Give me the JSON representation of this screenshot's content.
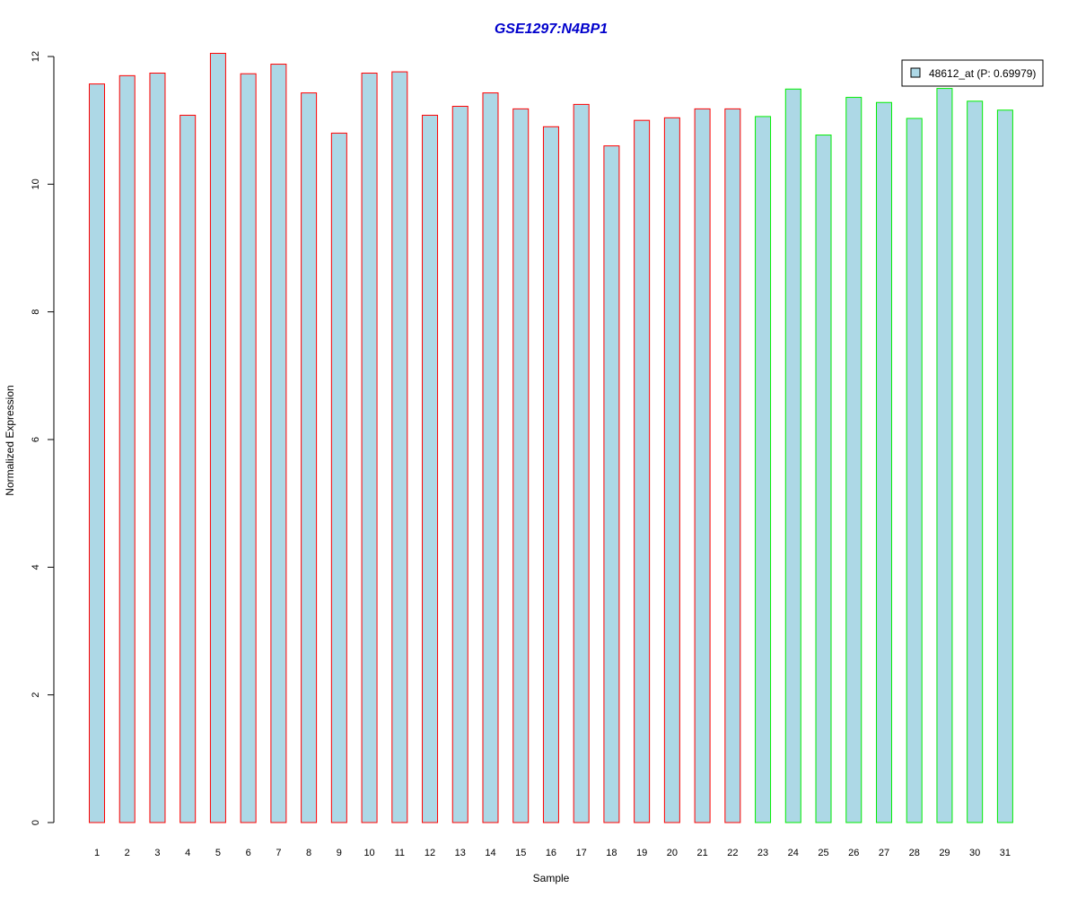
{
  "chart_data": {
    "type": "bar",
    "title": "GSE1297:N4BP1",
    "xlabel": "Sample",
    "ylabel": "Normalized Expression",
    "ylim": [
      0,
      12
    ],
    "yticks": [
      0,
      2,
      4,
      6,
      8,
      10,
      12
    ],
    "categories": [
      "1",
      "2",
      "3",
      "4",
      "5",
      "6",
      "7",
      "8",
      "9",
      "10",
      "11",
      "12",
      "13",
      "14",
      "15",
      "16",
      "17",
      "18",
      "19",
      "20",
      "21",
      "22",
      "23",
      "24",
      "25",
      "26",
      "27",
      "28",
      "29",
      "30",
      "31"
    ],
    "values": [
      11.57,
      11.7,
      11.74,
      11.08,
      12.05,
      11.73,
      11.88,
      11.43,
      10.8,
      11.74,
      11.76,
      11.08,
      11.22,
      11.43,
      11.18,
      10.9,
      11.25,
      10.6,
      11.0,
      11.04,
      11.18,
      11.18,
      11.06,
      11.49,
      10.77,
      11.36,
      11.28,
      11.03,
      11.5,
      11.3,
      11.16
    ],
    "groups": [
      "red",
      "red",
      "red",
      "red",
      "red",
      "red",
      "red",
      "red",
      "red",
      "red",
      "red",
      "red",
      "red",
      "red",
      "red",
      "red",
      "red",
      "red",
      "red",
      "red",
      "red",
      "red",
      "green",
      "green",
      "green",
      "green",
      "green",
      "green",
      "green",
      "green",
      "green"
    ],
    "colors": {
      "title": "#0000cc",
      "bar_fill": "#add8e6",
      "red": "#ff0000",
      "green": "#00ee00",
      "axis": "#000000"
    },
    "legend": {
      "label": "48612_at (P: 0.69979)",
      "position": "top-right"
    }
  }
}
